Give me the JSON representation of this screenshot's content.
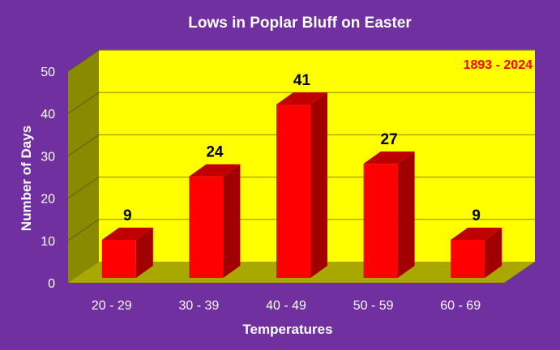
{
  "chart_data": {
    "type": "bar",
    "title": "Lows in Poplar Bluff on Easter",
    "annotation": "1893 - 2024",
    "xlabel": "Temperatures",
    "ylabel": "Number of Days",
    "categories": [
      "20 - 29",
      "30 - 39",
      "40 - 49",
      "50 - 59",
      "60 - 69"
    ],
    "values": [
      9,
      24,
      41,
      27,
      9
    ],
    "ylim": [
      0,
      50
    ],
    "yticks": [
      0,
      10,
      20,
      30,
      40,
      50
    ],
    "grid": true,
    "legend": "none",
    "colors": {
      "background": "#7030a0",
      "plot_area": "#ffff00",
      "floor": "#a8a800",
      "side_wall": "#8a8a00",
      "bar_front": "#ff0000",
      "bar_top": "#c00000",
      "bar_side": "#a00000",
      "annotation": "#ff0000",
      "text_light": "#ffffff",
      "text_dark": "#000000"
    }
  }
}
